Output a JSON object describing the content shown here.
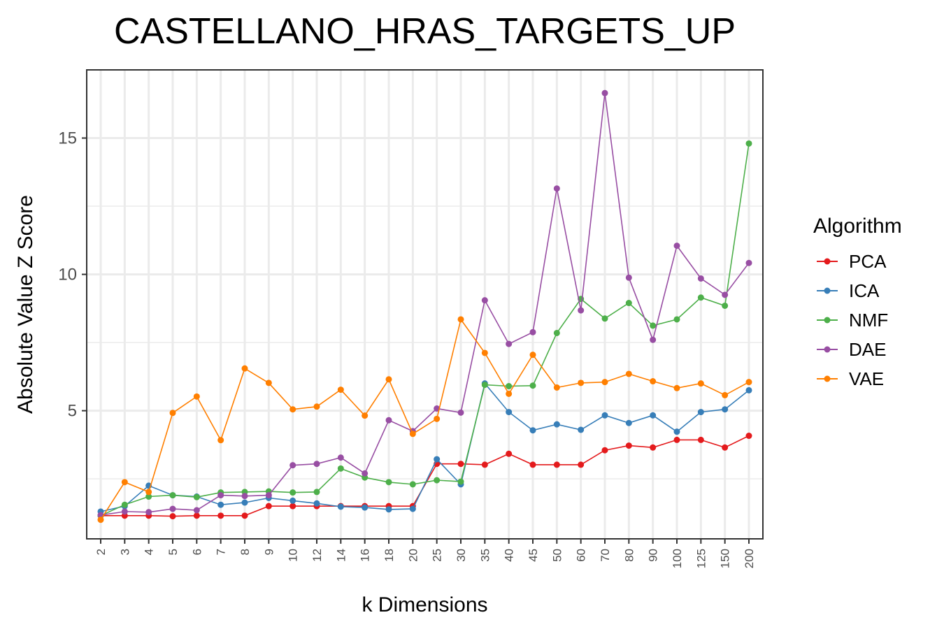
{
  "chart_data": {
    "type": "line",
    "title": "CASTELLANO_HRAS_TARGETS_UP",
    "xlabel": "k Dimensions",
    "ylabel": "Absolute Value Z Score",
    "categories": [
      "2",
      "3",
      "4",
      "5",
      "6",
      "7",
      "8",
      "9",
      "10",
      "12",
      "14",
      "16",
      "18",
      "20",
      "25",
      "30",
      "35",
      "40",
      "45",
      "50",
      "60",
      "70",
      "80",
      "90",
      "100",
      "125",
      "150",
      "200"
    ],
    "yticks": [
      5,
      10,
      15
    ],
    "ylim": [
      0.3,
      17.5
    ],
    "grid": true,
    "legend_title": "Algorithm",
    "legend_position": "right",
    "series": [
      {
        "name": "PCA",
        "color": "#e41a1c",
        "values": [
          1.15,
          1.15,
          1.15,
          1.13,
          1.15,
          1.15,
          1.15,
          1.5,
          1.5,
          1.5,
          1.5,
          1.5,
          1.5,
          1.5,
          3.05,
          3.05,
          3.02,
          3.42,
          3.02,
          3.02,
          3.02,
          3.55,
          3.72,
          3.65,
          3.93,
          3.93,
          3.65,
          4.08
        ]
      },
      {
        "name": "ICA",
        "color": "#377eb8",
        "values": [
          1.3,
          1.5,
          2.25,
          1.9,
          1.85,
          1.55,
          1.63,
          1.8,
          1.7,
          1.6,
          1.48,
          1.45,
          1.38,
          1.4,
          3.22,
          2.3,
          6.0,
          4.95,
          4.28,
          4.5,
          4.3,
          4.83,
          4.55,
          4.83,
          4.23,
          4.95,
          5.05,
          5.75
        ]
      },
      {
        "name": "NMF",
        "color": "#4daf4a",
        "values": [
          1.15,
          1.55,
          1.85,
          1.9,
          1.83,
          2.0,
          2.02,
          2.04,
          2.0,
          2.02,
          2.88,
          2.55,
          2.38,
          2.3,
          2.45,
          2.4,
          5.95,
          5.9,
          5.92,
          7.85,
          9.1,
          8.38,
          8.95,
          8.12,
          8.35,
          9.15,
          8.85,
          14.8
        ]
      },
      {
        "name": "DAE",
        "color": "#984ea3",
        "values": [
          1.17,
          1.3,
          1.28,
          1.4,
          1.35,
          1.9,
          1.87,
          1.9,
          3.0,
          3.05,
          3.28,
          2.7,
          4.65,
          4.25,
          5.08,
          4.93,
          9.05,
          7.45,
          7.88,
          13.15,
          8.68,
          16.65,
          9.88,
          7.6,
          11.05,
          9.85,
          9.25,
          10.42
        ]
      },
      {
        "name": "VAE",
        "color": "#ff7f00",
        "values": [
          1.0,
          2.38,
          2.02,
          4.92,
          5.52,
          3.92,
          6.55,
          6.02,
          5.05,
          5.15,
          5.77,
          4.82,
          6.15,
          4.15,
          4.7,
          8.35,
          7.12,
          5.62,
          7.05,
          5.85,
          6.02,
          6.05,
          6.35,
          6.08,
          5.83,
          6.0,
          5.57,
          6.05
        ]
      }
    ]
  }
}
